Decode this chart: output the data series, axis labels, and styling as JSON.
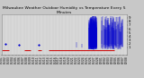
{
  "title": "Milwaukee Weather Outdoor Humidity vs Temperature Every 5 Minutes",
  "title_fontsize": 3.2,
  "bg_color": "#c8c8c8",
  "plot_bg_color": "#d8d8d8",
  "blue_color": "#0000cc",
  "red_color": "#cc0000",
  "ylim": [
    -1,
    10
  ],
  "yticks": [
    1,
    2,
    3,
    4,
    5,
    6,
    7,
    8,
    9
  ],
  "ylabel_fontsize": 2.8,
  "xlabel_fontsize": 2.2,
  "figsize": [
    1.6,
    0.87
  ],
  "dpi": 100,
  "grid_color": "#999999",
  "grid_style": ":"
}
